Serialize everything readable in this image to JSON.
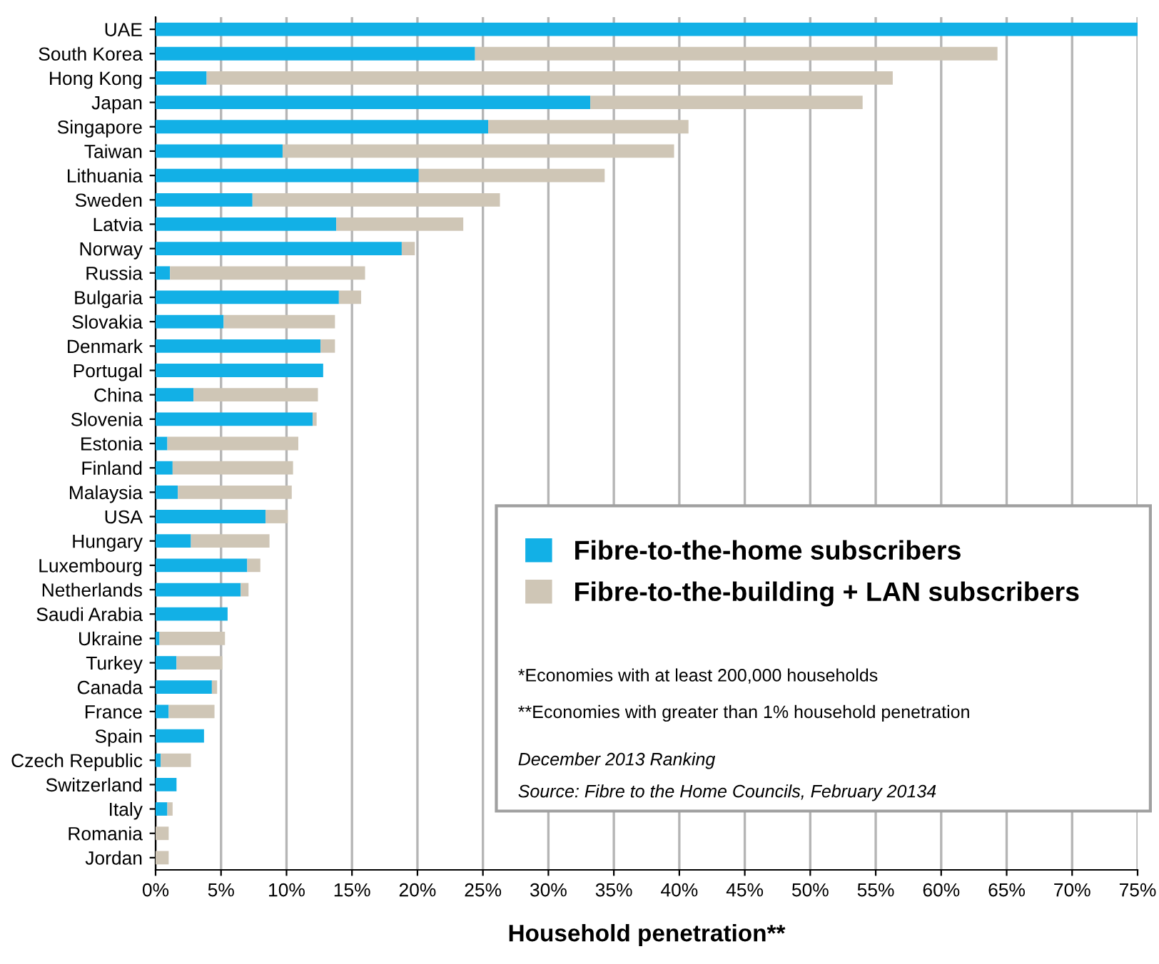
{
  "chart_data": {
    "type": "bar",
    "orientation": "horizontal",
    "stacked": true,
    "categories": [
      "UAE",
      "South Korea",
      "Hong Kong",
      "Japan",
      "Singapore",
      "Taiwan",
      "Lithuania",
      "Sweden",
      "Latvia",
      "Norway",
      "Russia",
      "Bulgaria",
      "Slovakia",
      "Denmark",
      "Portugal",
      "China",
      "Slovenia",
      "Estonia",
      "Finland",
      "Malaysia",
      "USA",
      "Hungary",
      "Luxembourg",
      "Netherlands",
      "Saudi Arabia",
      "Ukraine",
      "Turkey",
      "Canada",
      "France",
      "Spain",
      "Czech Republic",
      "Switzerland",
      "Italy",
      "Romania",
      "Jordan"
    ],
    "series": [
      {
        "name": "Fibre-to-the-home subscribers",
        "color": "#12b0e6",
        "values": [
          75,
          24.4,
          3.9,
          33.2,
          25.4,
          9.7,
          20.1,
          7.4,
          13.8,
          18.8,
          1.1,
          14.0,
          5.2,
          12.6,
          12.8,
          2.9,
          12.0,
          0.9,
          1.3,
          1.7,
          8.4,
          2.7,
          7.0,
          6.5,
          5.5,
          0.3,
          1.6,
          4.3,
          1.0,
          3.7,
          0.4,
          1.6,
          0.9,
          0,
          0
        ]
      },
      {
        "name": "Fibre-to-the-building + LAN subscribers",
        "color": "#cfc6b6",
        "values": [
          0,
          39.9,
          52.4,
          20.8,
          15.3,
          29.9,
          14.2,
          18.9,
          9.7,
          1.0,
          14.9,
          1.7,
          8.5,
          1.1,
          0,
          9.5,
          0.3,
          10.0,
          9.2,
          8.7,
          1.7,
          6.0,
          1.0,
          0.6,
          0,
          5.0,
          3.5,
          0.4,
          3.5,
          0,
          2.3,
          0,
          0.4,
          1.0,
          1.0
        ]
      }
    ],
    "xlabel": "Household penetration**",
    "xlim": [
      0,
      75
    ],
    "xticks": [
      {
        "value": 0,
        "label": "0%"
      },
      {
        "value": 5,
        "label": "5%"
      },
      {
        "value": 10,
        "label": "10%"
      },
      {
        "value": 15,
        "label": "15%"
      },
      {
        "value": 20,
        "label": "20%"
      },
      {
        "value": 25,
        "label": "25%"
      },
      {
        "value": 30,
        "label": "30%"
      },
      {
        "value": 35,
        "label": "35%"
      },
      {
        "value": 40,
        "label": "40%"
      },
      {
        "value": 45,
        "label": "45%"
      },
      {
        "value": 50,
        "label": "50%"
      },
      {
        "value": 55,
        "label": "55%"
      },
      {
        "value": 60,
        "label": "60%"
      },
      {
        "value": 65,
        "label": "65%"
      },
      {
        "value": 70,
        "label": "70%"
      },
      {
        "value": 75,
        "label": "75%"
      }
    ],
    "grid": "x",
    "legend": "bottom right",
    "annotations": [
      "*Economies with at least 200,000 households",
      "**Economies with greater than 1% household penetration",
      "December 2013 Ranking",
      "Source: Fibre to the Home Councils, February 20134"
    ]
  }
}
